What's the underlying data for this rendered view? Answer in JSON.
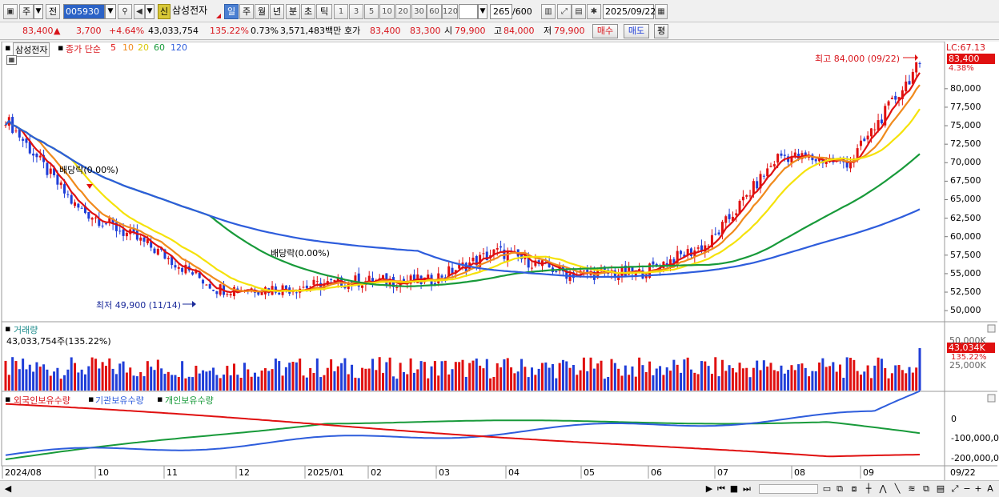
{
  "toolbar": {
    "market": "주",
    "type": "전",
    "code": "005930",
    "new_badge": "신",
    "stock_name": "삼성전자",
    "periods": [
      "일",
      "주",
      "월",
      "년",
      "분",
      "초",
      "틱"
    ],
    "intervals": [
      "1",
      "3",
      "5",
      "10",
      "20",
      "30",
      "60",
      "120"
    ],
    "count": "265",
    "count_total": "/600",
    "date": "2025/09/22"
  },
  "quote": {
    "price": "83,400",
    "arrow": "▲",
    "change": "3,700",
    "change_pct": "+4.64%",
    "volume": "43,033,754",
    "volume_ratio": "135.22%",
    "turnover": "0.73%",
    "amount": "3,571,483백만",
    "bid_label": "호가",
    "ask": "83,400",
    "bid": "83,300",
    "open_label": "시",
    "open": "79,900",
    "high_label": "고",
    "high": "84,000",
    "low_label": "저",
    "low": "79,900",
    "buy_button": "매수",
    "sell_button": "매도",
    "eval_button": "평"
  },
  "price_panel": {
    "stock_label": "삼성전자",
    "ma_title": "종가 단순",
    "ma_periods": [
      "5",
      "10",
      "20",
      "60",
      "120"
    ],
    "ma_colors": [
      "#e01010",
      "#f08a1c",
      "#f5e20a",
      "#189a3a",
      "#2e5ddc"
    ],
    "lc_label": "LC:67.13",
    "last_price_tag": "83,400",
    "last_pct_tag": "4.38%",
    "high_annotation": "최고 84,000 (09/22)",
    "low_annotation": "최저 49,900 (11/14)",
    "dividend_label_1": "배당락(0.00%)",
    "dividend_label_2": "배당락(0.00%)"
  },
  "volume_panel": {
    "title": "거래량",
    "value": "43,033,754주(135.22%)",
    "last_tag": "43,034K",
    "last_pct_tag": "135.22%"
  },
  "holder_panel": {
    "series": [
      "외국인보유수량",
      "기관보유수량",
      "개인보유수량"
    ],
    "colors": [
      "#e01010",
      "#2e5ddc",
      "#189a3a"
    ]
  },
  "axis": {
    "price_ticks": [
      "80,000",
      "77,500",
      "75,000",
      "72,500",
      "70,000",
      "67,500",
      "65,000",
      "62,500",
      "60,000",
      "57,500",
      "55,000",
      "52,500",
      "50,000"
    ],
    "volume_ticks": [
      "50,000K",
      "25,000K"
    ],
    "holder_ticks": [
      "0",
      "-100,000,0",
      "-200,000,0"
    ],
    "x_labels": [
      "2024/08",
      "10",
      "11",
      "12",
      "2025/01",
      "02",
      "03",
      "04",
      "05",
      "06",
      "07",
      "08",
      "09"
    ],
    "x_last": "09/22"
  },
  "chart_data": {
    "type": "candlestick",
    "title": "삼성전자",
    "x_range": [
      "2024/08",
      "2025/09/22"
    ],
    "price_ylim": [
      49900,
      84000
    ],
    "closes_monthly": [
      {
        "month": "2024/08",
        "close": 76000
      },
      {
        "month": "2024/09",
        "close": 64000
      },
      {
        "month": "2024/10",
        "close": 59000
      },
      {
        "month": "2024/11",
        "close": 53000
      },
      {
        "month": "2024/12",
        "close": 53000
      },
      {
        "month": "2025/01",
        "close": 54000
      },
      {
        "month": "2025/02",
        "close": 54000
      },
      {
        "month": "2025/03",
        "close": 58000
      },
      {
        "month": "2025/04",
        "close": 55000
      },
      {
        "month": "2025/05",
        "close": 55000
      },
      {
        "month": "2025/06",
        "close": 59000
      },
      {
        "month": "2025/07",
        "close": 71000
      },
      {
        "month": "2025/08",
        "close": 70000
      },
      {
        "month": "2025/09/22",
        "close": 83400
      }
    ],
    "high": {
      "value": 84000,
      "date": "09/22"
    },
    "low": {
      "value": 49900,
      "date": "11/14"
    },
    "moving_averages": [
      "5",
      "10",
      "20",
      "60",
      "120"
    ],
    "volume_last": 43033754,
    "holder_series": [
      "외국인보유수량",
      "기관보유수량",
      "개인보유수량"
    ]
  }
}
